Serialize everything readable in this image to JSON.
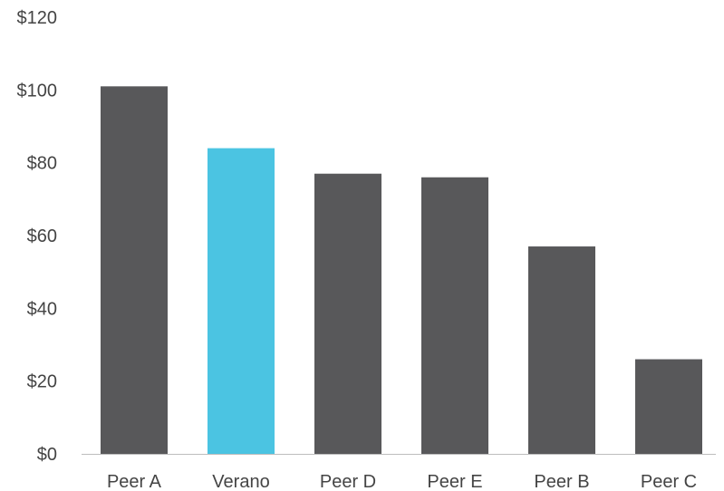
{
  "chart_data": {
    "type": "bar",
    "title": "",
    "xlabel": "",
    "ylabel": "",
    "categories": [
      "Peer A",
      "Verano",
      "Peer D",
      "Peer E",
      "Peer B",
      "Peer C"
    ],
    "values": [
      101,
      84,
      77,
      76,
      57,
      26
    ],
    "ylim": [
      0,
      120
    ],
    "yticks": [
      0,
      20,
      40,
      60,
      80,
      100,
      120
    ],
    "ytick_labels": [
      "$0",
      "$20",
      "$40",
      "$60",
      "$80",
      "$100",
      "$120"
    ],
    "grid": false,
    "legend": "none",
    "colors": {
      "default": "#58585a",
      "highlight": "#4bc4e2",
      "axis": "#bdbdbd"
    },
    "highlight_category": "Verano"
  }
}
